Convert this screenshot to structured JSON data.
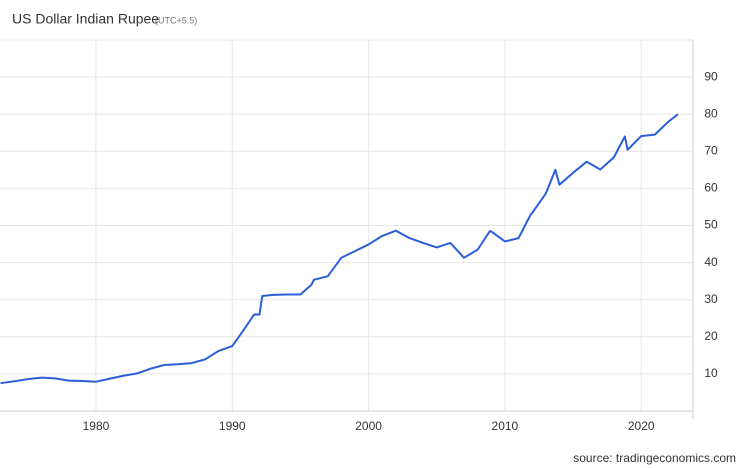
{
  "chart_data": {
    "type": "line",
    "title": "US Dollar Indian Rupee",
    "subtitle": "(UTC+5.5)",
    "source": "source: tradingeconomics.com",
    "x": [
      1973,
      1974,
      1975,
      1976,
      1977,
      1978,
      1979,
      1980,
      1981,
      1982,
      1983,
      1984,
      1985,
      1986,
      1987,
      1988,
      1989,
      1990,
      1991,
      1991.6,
      1992,
      1992.2,
      1993,
      1994,
      1995,
      1995.8,
      1996,
      1997,
      1998,
      1999,
      2000,
      2001,
      2002,
      2003,
      2004,
      2005,
      2006,
      2007,
      2008,
      2008.9,
      2009,
      2010,
      2011,
      2011.9,
      2012,
      2013,
      2013.7,
      2014,
      2015,
      2016,
      2017,
      2018,
      2018.8,
      2019,
      2020,
      2021,
      2022,
      2022.7
    ],
    "series": [
      {
        "name": "US Dollar Indian Rupee",
        "color": "#2b5fd9",
        "values": [
          7.5,
          8.0,
          8.6,
          9.0,
          8.8,
          8.2,
          8.1,
          7.9,
          8.7,
          9.5,
          10.1,
          11.4,
          12.4,
          12.6,
          12.9,
          13.9,
          16.2,
          17.5,
          22.7,
          26,
          26,
          31,
          31.3,
          31.4,
          31.4,
          34,
          35.4,
          36.3,
          41.3,
          43.1,
          44.9,
          47.2,
          48.6,
          46.6,
          45.3,
          44.1,
          45.3,
          41.3,
          43.5,
          48.5,
          48.4,
          45.7,
          46.6,
          53,
          53.4,
          58.6,
          65,
          61,
          64.2,
          67.2,
          65.1,
          68.4,
          74,
          70.4,
          74.1,
          74.5,
          78,
          80
        ]
      }
    ],
    "xlim": [
      1972.96,
      2023.8
    ],
    "xticks": [
      1980,
      1990,
      2000,
      2010,
      2020
    ],
    "ylim": [
      0,
      100
    ],
    "yticks": [
      10,
      20,
      30,
      40,
      50,
      60,
      70,
      80,
      90
    ],
    "grid": true
  }
}
